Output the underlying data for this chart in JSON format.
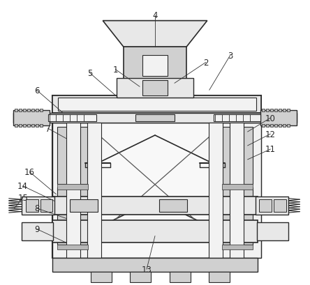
{
  "bg": "#ffffff",
  "lc": "#2a2a2a",
  "gray1": "#e8e8e8",
  "gray2": "#d0d0d0",
  "gray3": "#b8b8b8",
  "gray4": "#f2f2f2",
  "gray5": "#c0c0c0"
}
